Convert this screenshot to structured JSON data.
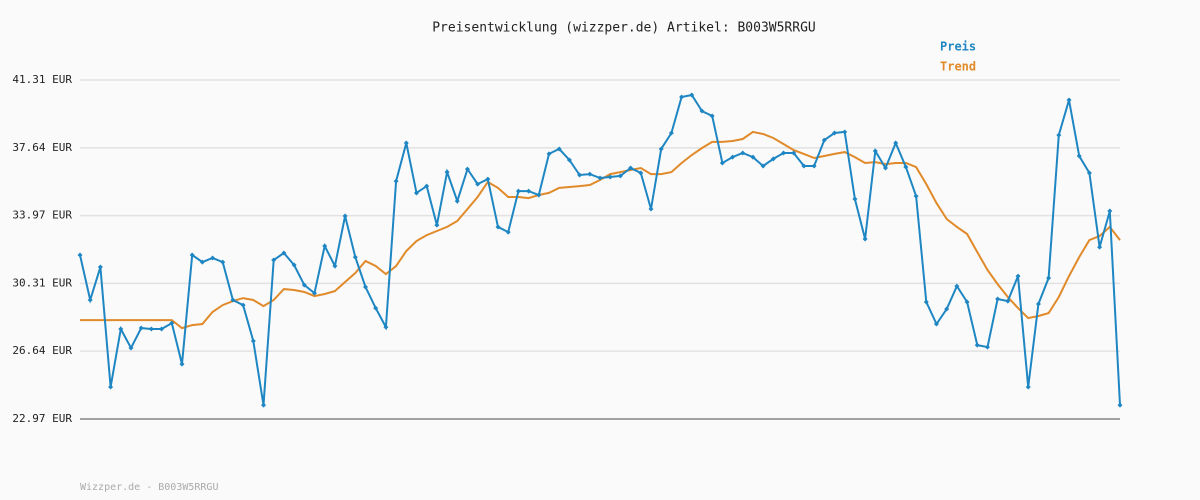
{
  "chart_data": {
    "type": "line",
    "title": "Preisentwicklung (wizzper.de) Artikel: B003W5RRGU",
    "footer": "Wizzper.de - B003W5RRGU",
    "ylim": [
      22.97,
      41.31
    ],
    "yticks": [
      {
        "value": 22.97,
        "label": "22.97 EUR"
      },
      {
        "value": 26.64,
        "label": "26.64 EUR"
      },
      {
        "value": 30.31,
        "label": "30.31 EUR"
      },
      {
        "value": 33.97,
        "label": "33.97 EUR"
      },
      {
        "value": 37.64,
        "label": "37.64 EUR"
      },
      {
        "value": 41.31,
        "label": "41.31 EUR"
      }
    ],
    "grid": true,
    "legend": "top-right",
    "series": [
      {
        "name": "Preis",
        "color": "#1e86c2",
        "markers": true,
        "values": [
          31.84,
          29.41,
          31.19,
          24.7,
          27.84,
          26.81,
          27.89,
          27.84,
          27.84,
          28.16,
          25.94,
          31.84,
          31.46,
          31.68,
          31.46,
          29.41,
          29.13,
          27.19,
          23.72,
          31.57,
          31.95,
          31.3,
          30.22,
          29.78,
          32.33,
          31.25,
          33.95,
          31.73,
          30.11,
          28.97,
          27.94,
          35.84,
          37.9,
          35.2,
          35.57,
          33.46,
          36.33,
          34.76,
          36.49,
          35.68,
          35.95,
          33.36,
          33.08,
          35.3,
          35.3,
          35.09,
          37.31,
          37.58,
          36.98,
          36.17,
          36.22,
          36.01,
          36.06,
          36.12,
          36.55,
          36.28,
          34.33,
          37.58,
          38.44,
          40.39,
          40.5,
          39.63,
          39.36,
          36.82,
          37.14,
          37.36,
          37.14,
          36.66,
          37.04,
          37.36,
          37.36,
          36.66,
          36.66,
          38.06,
          38.44,
          38.5,
          34.87,
          32.71,
          37.47,
          36.55,
          37.9,
          36.6,
          35.03,
          29.3,
          28.11,
          28.92,
          30.16,
          29.3,
          26.97,
          26.86,
          29.46,
          29.35,
          30.7,
          24.7,
          29.19,
          30.6,
          38.33,
          40.23,
          37.2,
          36.28,
          32.27,
          34.22,
          23.72
        ]
      },
      {
        "name": "Trend",
        "color": "#e08a2a",
        "markers": false,
        "values": [
          28.32,
          28.32,
          28.32,
          28.32,
          28.32,
          28.32,
          28.32,
          28.32,
          28.32,
          28.32,
          27.89,
          28.05,
          28.11,
          28.76,
          29.13,
          29.35,
          29.51,
          29.41,
          29.08,
          29.41,
          30.0,
          29.95,
          29.84,
          29.62,
          29.73,
          29.89,
          30.38,
          30.87,
          31.52,
          31.25,
          30.81,
          31.25,
          32.06,
          32.6,
          32.92,
          33.14,
          33.36,
          33.68,
          34.33,
          34.98,
          35.79,
          35.47,
          34.98,
          34.98,
          34.92,
          35.09,
          35.2,
          35.47,
          35.52,
          35.57,
          35.63,
          35.9,
          36.22,
          36.33,
          36.44,
          36.55,
          36.22,
          36.22,
          36.33,
          36.82,
          37.25,
          37.63,
          37.96,
          37.96,
          38.01,
          38.12,
          38.5,
          38.39,
          38.17,
          37.85,
          37.52,
          37.31,
          37.09,
          37.2,
          37.31,
          37.41,
          37.14,
          36.82,
          36.87,
          36.76,
          36.82,
          36.82,
          36.6,
          35.68,
          34.65,
          33.79,
          33.36,
          32.98,
          32.0,
          31.03,
          30.27,
          29.57,
          28.97,
          28.43,
          28.54,
          28.7,
          29.57,
          30.7,
          31.73,
          32.65,
          32.87,
          33.36,
          32.65
        ]
      }
    ]
  }
}
